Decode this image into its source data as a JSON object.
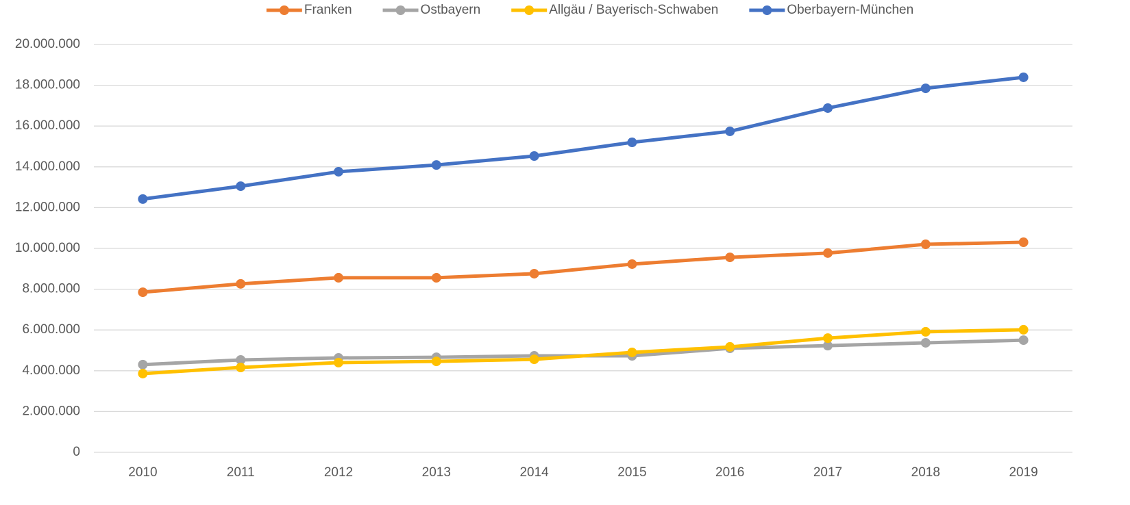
{
  "chart_data": {
    "type": "line",
    "categories": [
      "2010",
      "2011",
      "2012",
      "2013",
      "2014",
      "2015",
      "2016",
      "2017",
      "2018",
      "2019"
    ],
    "series": [
      {
        "name": "Franken",
        "color": "#ed7d31",
        "values": [
          7850000,
          8260000,
          8560000,
          8560000,
          8760000,
          9230000,
          9560000,
          9770000,
          10200000,
          10300000
        ]
      },
      {
        "name": "Ostbayern",
        "color": "#a5a5a5",
        "values": [
          4300000,
          4530000,
          4630000,
          4660000,
          4730000,
          4730000,
          5100000,
          5230000,
          5370000,
          5500000
        ]
      },
      {
        "name": "Allgäu / Bayerisch-Schwaben",
        "color": "#ffc000",
        "values": [
          3860000,
          4160000,
          4400000,
          4460000,
          4560000,
          4900000,
          5170000,
          5600000,
          5910000,
          6010000
        ]
      },
      {
        "name": "Oberbayern-München",
        "color": "#4472c4",
        "values": [
          12420000,
          13050000,
          13760000,
          14090000,
          14530000,
          15200000,
          15740000,
          16880000,
          17850000,
          18390000
        ]
      }
    ],
    "ylim": [
      0,
      20000000
    ],
    "yticks": [
      0,
      {
        "value": 2000000,
        "label": "2.000.000"
      },
      {
        "value": 4000000,
        "label": "4.000.000"
      },
      {
        "value": 6000000,
        "label": "6.000.000"
      },
      {
        "value": 8000000,
        "label": "8.000.000"
      },
      {
        "value": 10000000,
        "label": "10.000.000"
      },
      {
        "value": 12000000,
        "label": "12.000.000"
      },
      {
        "value": 14000000,
        "label": "14.000.000"
      },
      {
        "value": 16000000,
        "label": "16.000.000"
      },
      {
        "value": 18000000,
        "label": "18.000.000"
      },
      {
        "value": 20000000,
        "label": "20.000.000"
      }
    ],
    "grid": true,
    "legend": "top"
  }
}
